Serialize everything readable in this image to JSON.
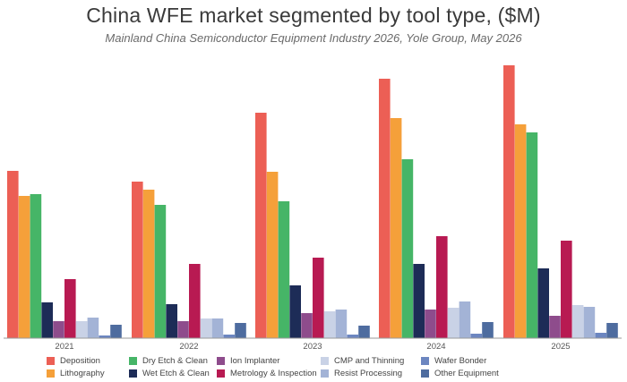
{
  "chart_data": {
    "type": "bar",
    "title": "China WFE market segmented by tool type, ($M)",
    "subtitle": "Mainland China Semiconductor Equipment Industry 2026, Yole Group, May 2026",
    "categories": [
      "2021",
      "2022",
      "2023",
      "2024",
      "2025"
    ],
    "series": [
      {
        "name": "Deposition",
        "color": "#ec5f55",
        "values": [
          187,
          175,
          252,
          290,
          305
        ]
      },
      {
        "name": "Lithography",
        "color": "#f5a03a",
        "values": [
          159,
          166,
          186,
          246,
          239
        ]
      },
      {
        "name": "Dry Etch & Clean",
        "color": "#46b567",
        "values": [
          161,
          149,
          153,
          200,
          230
        ]
      },
      {
        "name": "Wet Etch & Clean",
        "color": "#1d2c57",
        "values": [
          40,
          38,
          59,
          83,
          78
        ]
      },
      {
        "name": "Ion Implanter",
        "color": "#8e4c8c",
        "values": [
          19,
          19,
          28,
          32,
          25
        ]
      },
      {
        "name": "Metrology & Inspection",
        "color": "#b81a52",
        "values": [
          66,
          83,
          90,
          114,
          109
        ]
      },
      {
        "name": "CMP and Thinning",
        "color": "#c9d2e6",
        "values": [
          19,
          22,
          30,
          34,
          37
        ]
      },
      {
        "name": "Resist Processing",
        "color": "#a3b3d6",
        "values": [
          23,
          22,
          32,
          41,
          35
        ]
      },
      {
        "name": "Wafer Bonder",
        "color": "#6c86c0",
        "values": [
          3,
          4,
          4,
          5,
          6
        ]
      },
      {
        "name": "Other Equipment",
        "color": "#4e6c9f",
        "values": [
          15,
          17,
          14,
          18,
          17
        ]
      }
    ],
    "ylim": [
      0,
      310
    ],
    "xlabel": "",
    "ylabel": "",
    "grid": false,
    "legend_position": "bottom"
  }
}
